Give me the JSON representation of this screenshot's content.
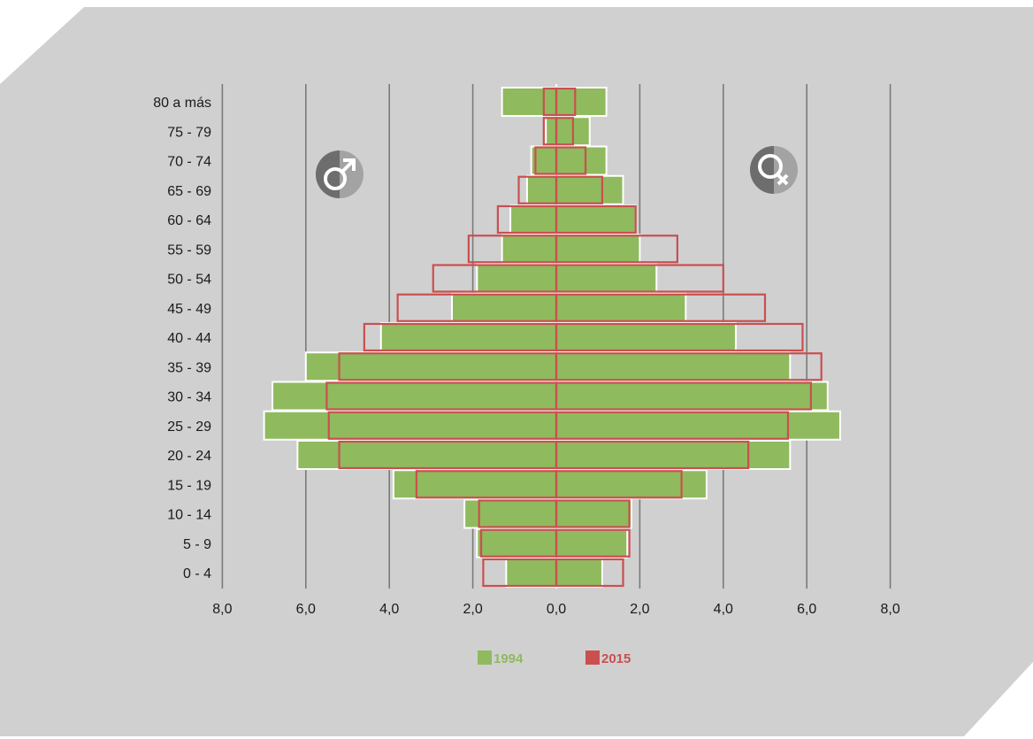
{
  "chart_data": {
    "type": "bar",
    "subtype": "population-pyramid",
    "categories": [
      "0 - 4",
      "5 - 9",
      "10 - 14",
      "15 - 19",
      "20 - 24",
      "25 - 29",
      "30 - 34",
      "35 - 39",
      "40 - 44",
      "45 - 49",
      "50 - 54",
      "55 - 59",
      "60 - 64",
      "65 - 69",
      "70 - 74",
      "75 - 79",
      "80 a más"
    ],
    "x_tick_labels": [
      "8,0",
      "6,0",
      "4,0",
      "2,0",
      "0,0",
      "2,0",
      "4,0",
      "6,0",
      "8,0"
    ],
    "xlim": [
      -8,
      8
    ],
    "grid": true,
    "legend_position": "bottom",
    "left_symbol": "male-icon",
    "right_symbol": "female-icon",
    "series": [
      {
        "name": "1994",
        "color": "#8fba5e",
        "style": "filled",
        "male": [
          1.2,
          1.9,
          2.2,
          3.9,
          6.2,
          7.0,
          6.8,
          6.0,
          4.2,
          2.5,
          1.9,
          1.3,
          1.1,
          0.7,
          0.6,
          0.25,
          1.3
        ],
        "female": [
          1.1,
          1.7,
          1.8,
          3.6,
          5.6,
          6.8,
          6.5,
          5.6,
          4.3,
          3.1,
          2.4,
          2.0,
          1.9,
          1.6,
          1.2,
          0.8,
          1.2
        ]
      },
      {
        "name": "2015",
        "color": "#c9504f",
        "style": "outline",
        "male": [
          1.75,
          1.8,
          1.85,
          3.35,
          5.2,
          5.45,
          5.5,
          5.2,
          4.6,
          3.8,
          2.95,
          2.1,
          1.4,
          0.9,
          0.5,
          0.3,
          0.3
        ],
        "female": [
          1.6,
          1.75,
          1.75,
          3.0,
          4.6,
          5.55,
          6.1,
          6.35,
          5.9,
          5.0,
          4.0,
          2.9,
          1.9,
          1.1,
          0.7,
          0.4,
          0.45
        ]
      }
    ]
  }
}
